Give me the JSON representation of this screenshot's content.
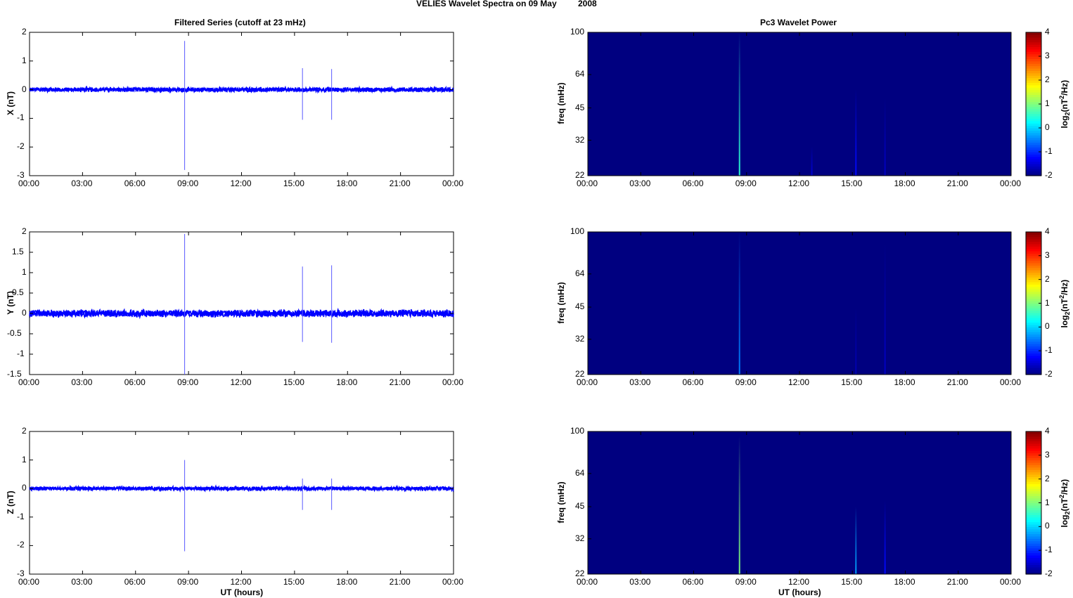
{
  "page": {
    "main_title_part1": "VELIES Wavelet Spectra on 09 May",
    "main_title_part2": "2008"
  },
  "left_title": "Filtered Series (cutoff at 23 mHz)",
  "right_title": "Pc3 Wavelet Power",
  "chart_data": [
    {
      "type": "line",
      "panel": "X",
      "ylabel": "X (nT)",
      "xlabel": "",
      "xlim": [
        "00:00",
        "24:00"
      ],
      "xticks": [
        "00:00",
        "03:00",
        "06:00",
        "09:00",
        "12:00",
        "15:00",
        "18:00",
        "21:00",
        "00:00"
      ],
      "ylim": [
        -3,
        2
      ],
      "yticks": [
        "2",
        "1",
        "0",
        "-1",
        "-2",
        "-3"
      ],
      "noise_amplitude": 0.07,
      "spikes": [
        {
          "time_h": 8.78,
          "min": -2.8,
          "max": 1.7
        },
        {
          "time_h": 15.45,
          "min": -1.05,
          "max": 0.75
        },
        {
          "time_h": 17.1,
          "min": -1.05,
          "max": 0.72
        }
      ],
      "color": "#0000ff"
    },
    {
      "type": "line",
      "panel": "Y",
      "ylabel": "Y (nT)",
      "xlabel": "",
      "xlim": [
        "00:00",
        "24:00"
      ],
      "xticks": [
        "00:00",
        "03:00",
        "06:00",
        "09:00",
        "12:00",
        "15:00",
        "18:00",
        "21:00",
        "00:00"
      ],
      "ylim": [
        -1.5,
        2
      ],
      "yticks": [
        "2",
        "1.5",
        "1",
        "0.5",
        "0",
        "-0.5",
        "-1",
        "-1.5"
      ],
      "noise_amplitude": 0.08,
      "spikes": [
        {
          "time_h": 8.78,
          "min": -1.5,
          "max": 1.95
        },
        {
          "time_h": 15.45,
          "min": -0.7,
          "max": 1.15
        },
        {
          "time_h": 17.1,
          "min": -0.72,
          "max": 1.18
        }
      ],
      "color": "#0000ff"
    },
    {
      "type": "line",
      "panel": "Z",
      "ylabel": "Z (nT)",
      "xlabel": "UT (hours)",
      "xlim": [
        "00:00",
        "24:00"
      ],
      "xticks": [
        "00:00",
        "03:00",
        "06:00",
        "09:00",
        "12:00",
        "15:00",
        "18:00",
        "21:00",
        "00:00"
      ],
      "ylim": [
        -3,
        2
      ],
      "yticks": [
        "2",
        "1",
        "0",
        "-1",
        "-2",
        "-3"
      ],
      "noise_amplitude": 0.06,
      "spikes": [
        {
          "time_h": 8.78,
          "min": -2.2,
          "max": 1.0
        },
        {
          "time_h": 15.45,
          "min": -0.75,
          "max": 0.35
        },
        {
          "time_h": 17.1,
          "min": -0.75,
          "max": 0.35
        }
      ],
      "color": "#0000ff"
    },
    {
      "type": "heatmap",
      "panel": "X wavelet",
      "ylabel": "freq (mHz)",
      "xlabel": "",
      "yscale": "log",
      "ylim": [
        22,
        100
      ],
      "yticks": [
        "100",
        "64",
        "45",
        "32",
        "22"
      ],
      "xticks": [
        "00:00",
        "03:00",
        "06:00",
        "09:00",
        "12:00",
        "15:00",
        "18:00",
        "21:00",
        "00:00"
      ],
      "colorbar_label": "log2(nT2/Hz)",
      "clim": [
        -2,
        4
      ],
      "cticks": [
        "4",
        "3",
        "2",
        "1",
        "0",
        "-1",
        "-2"
      ],
      "background_value": -2,
      "streaks": [
        {
          "time_h": 8.6,
          "fmin": 22,
          "fmax": 100,
          "value": 0.5
        },
        {
          "time_h": 12.7,
          "fmin": 22,
          "fmax": 30,
          "value": -1.5
        },
        {
          "time_h": 15.2,
          "fmin": 22,
          "fmax": 55,
          "value": -1.2
        },
        {
          "time_h": 16.85,
          "fmin": 22,
          "fmax": 50,
          "value": -1.6
        }
      ]
    },
    {
      "type": "heatmap",
      "panel": "Y wavelet",
      "ylabel": "freq (mHz)",
      "xlabel": "",
      "yscale": "log",
      "ylim": [
        22,
        100
      ],
      "yticks": [
        "100",
        "64",
        "45",
        "32",
        "22"
      ],
      "xticks": [
        "00:00",
        "03:00",
        "06:00",
        "09:00",
        "12:00",
        "15:00",
        "18:00",
        "21:00",
        "00:00"
      ],
      "colorbar_label": "log2(nT2/Hz)",
      "clim": [
        -2,
        4
      ],
      "cticks": [
        "4",
        "3",
        "2",
        "1",
        "0",
        "-1",
        "-2"
      ],
      "background_value": -2,
      "streaks": [
        {
          "time_h": 8.6,
          "fmin": 22,
          "fmax": 100,
          "value": -0.5
        },
        {
          "time_h": 15.2,
          "fmin": 22,
          "fmax": 45,
          "value": -1.7
        },
        {
          "time_h": 16.85,
          "fmin": 22,
          "fmax": 90,
          "value": -1.6
        }
      ]
    },
    {
      "type": "heatmap",
      "panel": "Z wavelet",
      "ylabel": "freq (mHz)",
      "xlabel": "UT (hours)",
      "yscale": "log",
      "ylim": [
        22,
        100
      ],
      "yticks": [
        "100",
        "64",
        "45",
        "32",
        "22"
      ],
      "xticks": [
        "00:00",
        "03:00",
        "06:00",
        "09:00",
        "12:00",
        "15:00",
        "18:00",
        "21:00",
        "00:00"
      ],
      "colorbar_label": "log2(nT2/Hz)",
      "clim": [
        -2,
        4
      ],
      "cticks": [
        "4",
        "3",
        "2",
        "1",
        "0",
        "-1",
        "-2"
      ],
      "background_value": -2,
      "streaks": [
        {
          "time_h": 8.6,
          "fmin": 22,
          "fmax": 95,
          "value": 1.0
        },
        {
          "time_h": 15.2,
          "fmin": 22,
          "fmax": 45,
          "value": -0.3
        },
        {
          "time_h": 16.85,
          "fmin": 22,
          "fmax": 48,
          "value": -1.2
        }
      ]
    }
  ]
}
